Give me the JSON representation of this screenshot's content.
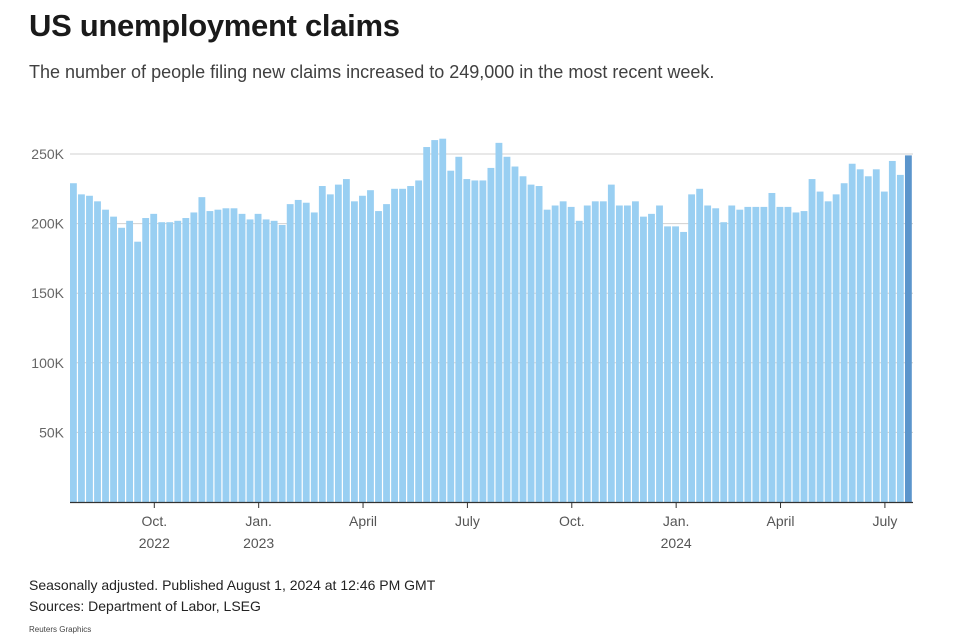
{
  "title": "US unemployment claims",
  "subtitle": "The number of people filing new claims increased to 249,000 in the most recent week.",
  "footnotes": {
    "line1": "Seasonally adjusted. Published August 1, 2024 at 12:46 PM GMT",
    "line2": "Sources: Department of Labor, LSEG"
  },
  "credit": "Reuters Graphics",
  "colors": {
    "bar": "#99cff2",
    "highlight": "#5b95cc",
    "grid": "#d0d0d0",
    "axis": "#333333"
  },
  "chart_data": {
    "type": "bar",
    "ylim": [
      0,
      250000
    ],
    "grid": true,
    "y_ticks": [
      {
        "value": 50000,
        "label": "50K"
      },
      {
        "value": 100000,
        "label": "100K"
      },
      {
        "value": 150000,
        "label": "150K"
      },
      {
        "value": 200000,
        "label": "200K"
      },
      {
        "value": 250000,
        "label": "250K"
      }
    ],
    "x_ticks": [
      {
        "index": 10,
        "label": "Oct.",
        "sublabel": "2022"
      },
      {
        "index": 23,
        "label": "Jan.",
        "sublabel": "2023"
      },
      {
        "index": 36,
        "label": "April",
        "sublabel": ""
      },
      {
        "index": 49,
        "label": "July",
        "sublabel": ""
      },
      {
        "index": 62,
        "label": "Oct.",
        "sublabel": ""
      },
      {
        "index": 75,
        "label": "Jan.",
        "sublabel": "2024"
      },
      {
        "index": 88,
        "label": "April",
        "sublabel": ""
      },
      {
        "index": 101,
        "label": "July",
        "sublabel": ""
      }
    ],
    "values": [
      229000,
      221000,
      220000,
      216000,
      210000,
      205000,
      197000,
      202000,
      187000,
      204000,
      207000,
      201000,
      201000,
      202000,
      204000,
      208000,
      219000,
      209000,
      210000,
      211000,
      211000,
      207000,
      203000,
      207000,
      203000,
      202000,
      199000,
      214000,
      217000,
      215000,
      208000,
      227000,
      221000,
      228000,
      232000,
      216000,
      220000,
      224000,
      209000,
      214000,
      225000,
      225000,
      227000,
      231000,
      255000,
      260000,
      261000,
      238000,
      248000,
      232000,
      231000,
      231000,
      240000,
      258000,
      248000,
      241000,
      234000,
      228000,
      227000,
      210000,
      213000,
      216000,
      212000,
      202000,
      213000,
      216000,
      216000,
      228000,
      213000,
      213000,
      216000,
      205000,
      207000,
      213000,
      198000,
      198000,
      194000,
      221000,
      225000,
      213000,
      211000,
      201000,
      213000,
      210000,
      212000,
      212000,
      212000,
      222000,
      212000,
      212000,
      208000,
      209000,
      232000,
      223000,
      216000,
      221000,
      229000,
      243000,
      239000,
      234000,
      239000,
      223000,
      245000,
      235000,
      249000
    ]
  }
}
